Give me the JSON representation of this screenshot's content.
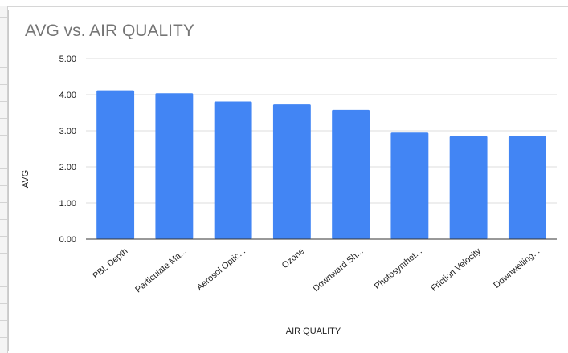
{
  "chart_data": {
    "type": "bar",
    "title": "AVG vs. AIR QUALITY",
    "xlabel": "AIR QUALITY",
    "ylabel": "AVG",
    "categories": [
      "PBL Depth",
      "Particulate Ma...",
      "Aerosol Optic...",
      "Ozone",
      "Downward Sh...",
      "Photosynthet...",
      "Friction Velocity",
      "Downwelling..."
    ],
    "values": [
      4.12,
      4.04,
      3.81,
      3.73,
      3.58,
      2.95,
      2.85,
      2.85
    ],
    "yticks": [
      "0.00",
      "1.00",
      "2.00",
      "3.00",
      "4.00",
      "5.00"
    ],
    "ylim": [
      0,
      5
    ],
    "grid": true,
    "legend": "none",
    "bar_color": "#4285f4",
    "gridline_color": "#dcdcdc",
    "baseline_color": "#333333",
    "title_color": "#757575"
  }
}
